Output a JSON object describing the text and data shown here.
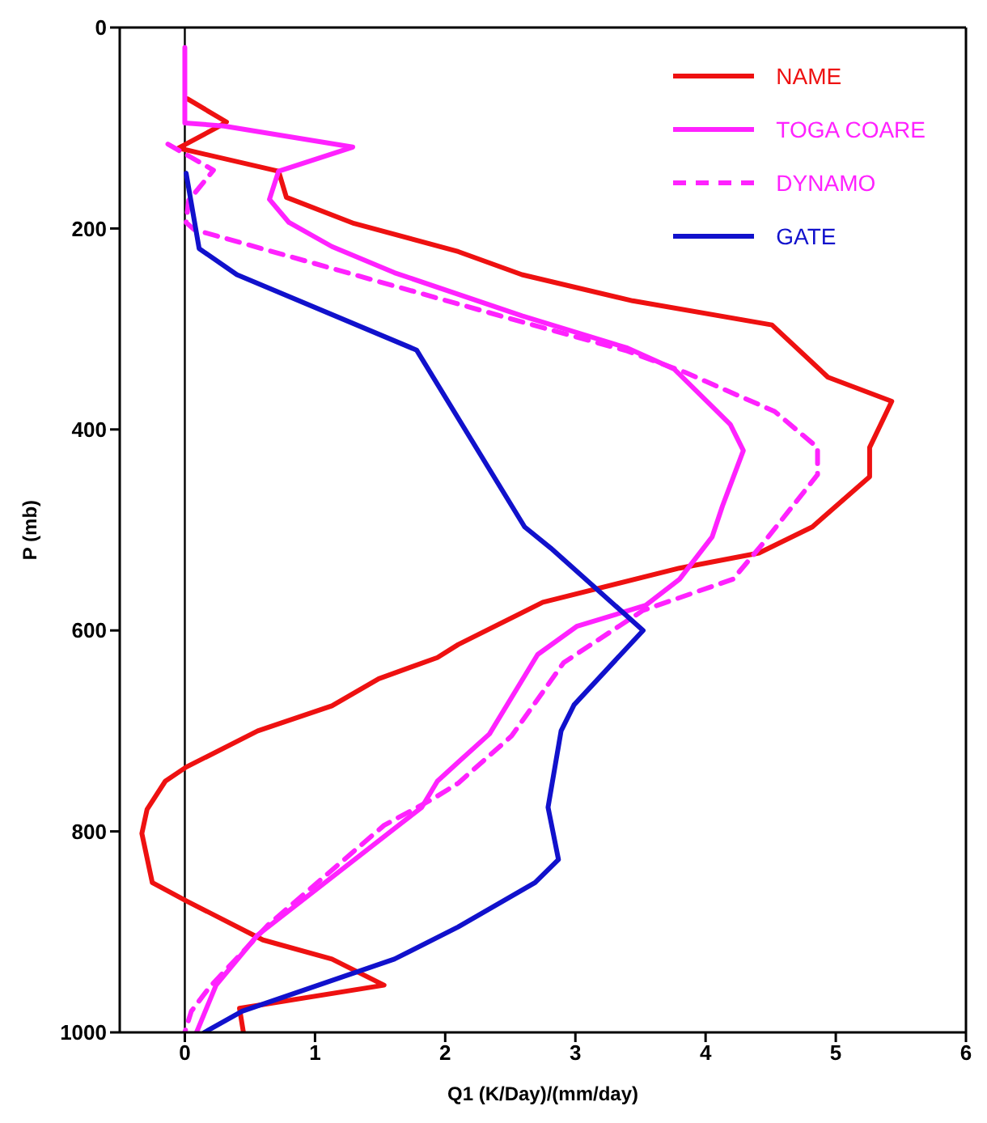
{
  "chart_data": {
    "type": "line",
    "xlabel": "Q1 (K/Day)/(mm/day)",
    "ylabel": "P (mb)",
    "xlim": [
      -0.5,
      6
    ],
    "xticks": [
      0,
      1,
      2,
      3,
      4,
      5,
      6
    ],
    "ylim": [
      1000,
      0
    ],
    "yticks": [
      0,
      200,
      400,
      600,
      800,
      1000
    ],
    "legend": "top right",
    "marker": "none",
    "ref_lines": [
      {
        "axis": "x",
        "value": 0,
        "color": "#000000"
      }
    ],
    "series": [
      {
        "name": "NAME",
        "color": "#ee1111",
        "line_style": "solid",
        "x": [
          0.02,
          0.32,
          0.24,
          -0.05,
          0.72,
          0.78,
          1.3,
          2.1,
          2.59,
          3.44,
          4.51,
          4.94,
          5.43,
          5.26,
          5.26,
          4.82,
          4.41,
          3.8,
          2.75,
          2.1,
          1.94,
          1.49,
          1.13,
          0.56,
          0.01,
          -0.15,
          -0.29,
          -0.33,
          -0.25,
          0.01,
          0.6,
          1.13,
          1.53,
          0.42,
          0.45
        ],
        "values": [
          71,
          94,
          100,
          120,
          143,
          169,
          195,
          223,
          246,
          272,
          296,
          348,
          372,
          418,
          447,
          497,
          523,
          538,
          572,
          614,
          627,
          648,
          675,
          700,
          736,
          750,
          778,
          802,
          851,
          869,
          908,
          927,
          953,
          976,
          1000
        ]
      },
      {
        "name": "TOGA COARE",
        "color": "#ff22ff",
        "line_style": "solid",
        "x": [
          0,
          0,
          0.3,
          1.29,
          0.72,
          0.65,
          0.8,
          1.13,
          1.61,
          2.59,
          3.4,
          3.76,
          4.19,
          4.29,
          4.13,
          4.05,
          3.8,
          3.54,
          3.01,
          2.71,
          2.34,
          2.1,
          1.94,
          1.82,
          0.56,
          0.24,
          0.09
        ],
        "values": [
          20,
          95,
          98,
          119,
          143,
          171,
          194,
          218,
          244,
          287,
          319,
          340,
          395,
          421,
          476,
          507,
          549,
          575,
          596,
          624,
          703,
          731,
          750,
          776,
          903,
          953,
          1000
        ]
      },
      {
        "name": "DYNAMO",
        "color": "#ff22ff",
        "line_style": "dashed",
        "x": [
          -0.13,
          0.22,
          0.03,
          0.01,
          0.07,
          2.59,
          3.4,
          3.84,
          4.53,
          4.86,
          4.86,
          4.45,
          4.21,
          3.52,
          2.91,
          2.51,
          2.1,
          1.9,
          1.53,
          0.64,
          0.19,
          0.05,
          0
        ],
        "values": [
          116,
          142,
          172,
          194,
          201,
          293,
          322,
          343,
          382,
          418,
          445,
          512,
          549,
          580,
          632,
          705,
          752,
          768,
          794,
          893,
          955,
          979,
          1000
        ]
      },
      {
        "name": "GATE",
        "color": "#1111cc",
        "line_style": "solid",
        "x": [
          0.01,
          0.11,
          0.4,
          1.78,
          2.61,
          2.81,
          3.52,
          2.99,
          2.89,
          2.79,
          2.87,
          2.69,
          2.1,
          1.61,
          0.44,
          0.15
        ],
        "values": [
          145,
          220,
          246,
          321,
          497,
          518,
          600,
          674,
          700,
          776,
          828,
          851,
          895,
          927,
          979,
          1000
        ]
      }
    ]
  }
}
